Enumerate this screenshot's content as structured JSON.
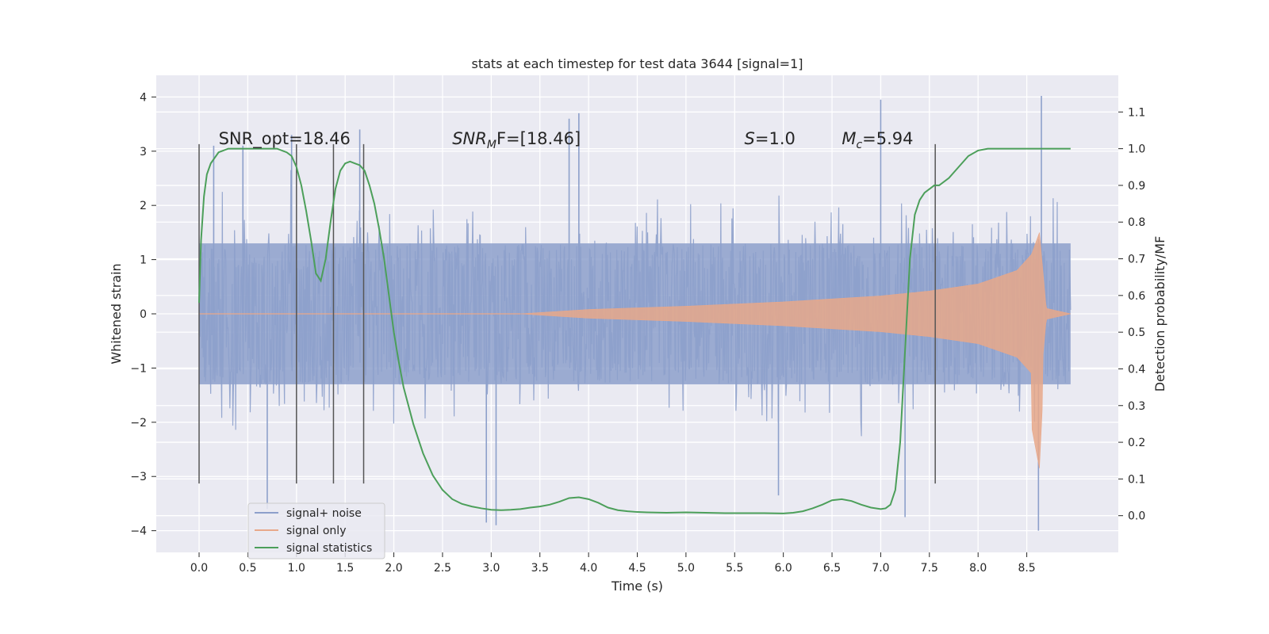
{
  "chart_data": {
    "type": "line",
    "title": "stats at each timestep for test data 3644 [signal=1]",
    "xlabel": "Time (s)",
    "ylabel": "Whitened strain",
    "y2label": "Detection probability/MF",
    "xlim": [
      -0.44,
      9.44
    ],
    "ylim": [
      -4.4,
      4.4
    ],
    "y2lim": [
      -0.1,
      1.2
    ],
    "x_ticks": [
      0.0,
      0.5,
      1.0,
      1.5,
      2.0,
      2.5,
      3.0,
      3.5,
      4.0,
      4.5,
      5.0,
      5.5,
      6.0,
      6.5,
      7.0,
      7.5,
      8.0,
      8.5
    ],
    "x_tick_labels": [
      "0.0",
      "0.5",
      "1.0",
      "1.5",
      "2.0",
      "2.5",
      "3.0",
      "3.5",
      "4.0",
      "4.5",
      "5.0",
      "5.5",
      "6.0",
      "6.5",
      "7.0",
      "7.5",
      "8.0",
      "8.5"
    ],
    "y_ticks": [
      -4,
      -3,
      -2,
      -1,
      0,
      1,
      2,
      3,
      4
    ],
    "y_tick_labels": [
      "−4",
      "−3",
      "−2",
      "−1",
      "0",
      "1",
      "2",
      "3",
      "4"
    ],
    "y2_ticks": [
      0.0,
      0.1,
      0.2,
      0.3,
      0.4,
      0.5,
      0.6,
      0.7,
      0.8,
      0.9,
      1.0,
      1.1
    ],
    "y2_tick_labels": [
      "0.0",
      "0.1",
      "0.2",
      "0.3",
      "0.4",
      "0.5",
      "0.6",
      "0.7",
      "0.8",
      "0.9",
      "1.0",
      "1.1"
    ],
    "grid": true,
    "legend_position": "lower-left",
    "legend": [
      {
        "label": "signal+ noise",
        "color": "#8da0cb"
      },
      {
        "label": "signal only",
        "color": "#e8a88a"
      },
      {
        "label": "signal statistics",
        "color": "#4c9f5a"
      }
    ],
    "annotations": [
      {
        "text": "SNR_opt=18.46",
        "x": 0.2,
        "y": 3.2
      },
      {
        "text": "SNR",
        "sub": "M",
        "tail": "F=[18.46]",
        "italic_head": true,
        "x": 2.6,
        "y": 3.2
      },
      {
        "text": "S",
        "tail": "=1.0",
        "italic_head": true,
        "x": 5.6,
        "y": 3.2
      },
      {
        "text": "M",
        "sub": "c",
        "tail": "=5.94",
        "italic_head": true,
        "x": 6.6,
        "y": 3.2
      }
    ],
    "vertical_markers": {
      "x": [
        0.0,
        1.0,
        1.38,
        1.69,
        7.56
      ],
      "y_range": [
        -3.13,
        3.13
      ],
      "color": "#555555"
    },
    "series": [
      {
        "name": "signal+ noise",
        "kind": "noise_band",
        "color": "#8da0cb",
        "x_range": [
          0.0,
          8.95
        ],
        "core_amplitude": 1.3,
        "max_positive": 4.02,
        "max_negative": -4.0,
        "peaks": [
          {
            "x": 0.15,
            "y": 3.1
          },
          {
            "x": 0.45,
            "y": 3.1
          },
          {
            "x": 0.95,
            "y": 3.3
          },
          {
            "x": 1.65,
            "y": 3.4
          },
          {
            "x": 3.9,
            "y": 3.7
          },
          {
            "x": 3.8,
            "y": 3.6
          },
          {
            "x": 7.0,
            "y": 3.95
          },
          {
            "x": 8.65,
            "y": 4.02
          },
          {
            "x": 0.7,
            "y": -3.6
          },
          {
            "x": 2.95,
            "y": -3.85
          },
          {
            "x": 3.05,
            "y": -3.9
          },
          {
            "x": 7.25,
            "y": -3.75
          },
          {
            "x": 8.62,
            "y": -4.0
          },
          {
            "x": 5.95,
            "y": -3.35
          }
        ]
      },
      {
        "name": "signal only",
        "kind": "chirp",
        "color": "#e8a88a",
        "x_range": [
          3.3,
          8.95
        ],
        "merger_time": 8.63,
        "envelope": [
          {
            "x": 3.3,
            "y": 0.0
          },
          {
            "x": 4.0,
            "y": 0.08
          },
          {
            "x": 5.0,
            "y": 0.14
          },
          {
            "x": 6.0,
            "y": 0.22
          },
          {
            "x": 7.0,
            "y": 0.33
          },
          {
            "x": 7.5,
            "y": 0.42
          },
          {
            "x": 8.0,
            "y": 0.55
          },
          {
            "x": 8.4,
            "y": 0.8
          },
          {
            "x": 8.55,
            "y": 1.1
          },
          {
            "x": 8.63,
            "y": 1.5
          },
          {
            "x": 8.7,
            "y": 0.1
          },
          {
            "x": 8.95,
            "y": 0.0
          }
        ]
      },
      {
        "name": "signal statistics",
        "axis": "right",
        "color": "#4c9f5a",
        "x": [
          0.0,
          0.02,
          0.05,
          0.08,
          0.12,
          0.2,
          0.3,
          0.5,
          0.7,
          0.8,
          0.9,
          0.95,
          1.0,
          1.05,
          1.1,
          1.15,
          1.2,
          1.25,
          1.3,
          1.35,
          1.4,
          1.45,
          1.5,
          1.55,
          1.6,
          1.65,
          1.7,
          1.75,
          1.8,
          1.85,
          1.9,
          1.95,
          2.0,
          2.05,
          2.1,
          2.2,
          2.3,
          2.4,
          2.5,
          2.6,
          2.7,
          2.8,
          2.9,
          3.0,
          3.1,
          3.2,
          3.3,
          3.4,
          3.5,
          3.6,
          3.7,
          3.8,
          3.9,
          4.0,
          4.1,
          4.2,
          4.3,
          4.4,
          4.5,
          4.6,
          4.8,
          5.0,
          5.2,
          5.4,
          5.6,
          5.8,
          6.0,
          6.1,
          6.2,
          6.3,
          6.4,
          6.5,
          6.6,
          6.7,
          6.8,
          6.9,
          7.0,
          7.05,
          7.1,
          7.15,
          7.2,
          7.25,
          7.3,
          7.35,
          7.4,
          7.45,
          7.5,
          7.55,
          7.6,
          7.7,
          7.8,
          7.9,
          8.0,
          8.1,
          8.2,
          8.4,
          8.6,
          8.8,
          8.95
        ],
        "y": [
          0.58,
          0.75,
          0.87,
          0.93,
          0.96,
          0.99,
          1.0,
          1.0,
          1.0,
          1.0,
          0.99,
          0.98,
          0.95,
          0.9,
          0.83,
          0.75,
          0.66,
          0.64,
          0.7,
          0.8,
          0.89,
          0.94,
          0.96,
          0.965,
          0.96,
          0.955,
          0.94,
          0.9,
          0.85,
          0.78,
          0.7,
          0.6,
          0.5,
          0.42,
          0.35,
          0.25,
          0.17,
          0.11,
          0.07,
          0.045,
          0.032,
          0.025,
          0.02,
          0.016,
          0.015,
          0.016,
          0.018,
          0.022,
          0.025,
          0.03,
          0.038,
          0.048,
          0.05,
          0.045,
          0.035,
          0.022,
          0.015,
          0.012,
          0.01,
          0.009,
          0.008,
          0.009,
          0.008,
          0.007,
          0.007,
          0.007,
          0.006,
          0.008,
          0.012,
          0.02,
          0.03,
          0.042,
          0.045,
          0.04,
          0.03,
          0.022,
          0.018,
          0.02,
          0.03,
          0.07,
          0.2,
          0.45,
          0.7,
          0.82,
          0.86,
          0.88,
          0.89,
          0.9,
          0.9,
          0.92,
          0.95,
          0.98,
          0.995,
          1.0,
          1.0,
          1.0,
          1.0,
          1.0,
          1.0
        ]
      }
    ]
  }
}
